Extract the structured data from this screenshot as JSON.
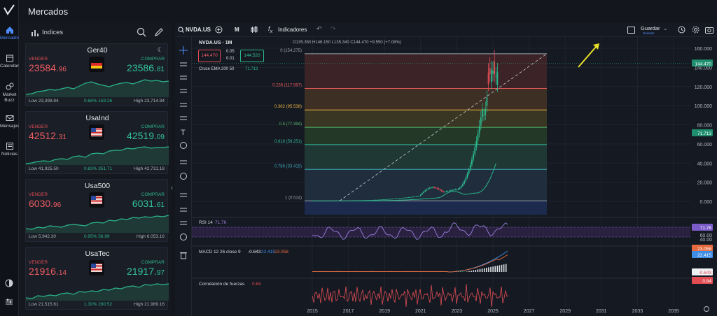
{
  "app": {
    "title": "Mercados"
  },
  "rail": {
    "items": [
      {
        "label": "Mercados",
        "icon": "home-icon"
      },
      {
        "label": "Calendario",
        "icon": "calendar-icon"
      },
      {
        "label": "Market Buzz",
        "icon": "buzz-icon"
      },
      {
        "label": "Mensajes",
        "icon": "mail-icon"
      },
      {
        "label": "Noticias",
        "icon": "news-icon"
      }
    ]
  },
  "markets": {
    "header": "Indices",
    "cards": [
      {
        "name": "Ger40",
        "sell_label": "VENDER",
        "buy_label": "COMPRAR",
        "sell_main": "23584.",
        "sell_small": "96",
        "buy_main": "23586.",
        "buy_small": "81",
        "low": "Low 23,398.84",
        "change": "0.68%  159.26",
        "high": "High 23,714.94",
        "flag": "Germany"
      },
      {
        "name": "UsaInd",
        "sell_label": "VENDER",
        "buy_label": "COMPRAR",
        "sell_main": "42512.",
        "sell_small": "31",
        "buy_main": "42519.",
        "buy_small": "09",
        "low": "Low 41,925.50",
        "change": "0.83%  351.71",
        "high": "High 42,731.18",
        "flag": "USA"
      },
      {
        "name": "Usa500",
        "sell_label": "VENDER",
        "buy_label": "COMPRAR",
        "sell_main": "6030.",
        "sell_small": "96",
        "buy_main": "6031.",
        "buy_small": "61",
        "low": "Low 5,942.30",
        "change": "0.95%  56.99",
        "high": "High 6,053.16",
        "flag": "USA"
      },
      {
        "name": "UsaTec",
        "sell_label": "VENDER",
        "buy_label": "COMPRAR",
        "sell_main": "21916.",
        "sell_small": "14",
        "buy_main": "21917.",
        "buy_small": "97",
        "low": "Low 21,515.61",
        "change": "1.30%  280.52",
        "high": "High 21,989.16",
        "flag": "USA"
      }
    ]
  },
  "toolbar": {
    "symbol": "NVDA.US",
    "interval": "M",
    "indicators": "Indicadores",
    "save": "Guardar",
    "save_sub": "Guardar"
  },
  "legend": {
    "title": "NVDA.US · 1M",
    "ohlc": "O135.350  H146.150  L135.340  C144.470  +9.550 (+7.08%)",
    "sell_box": "144.470",
    "buy_box": "144.520",
    "spread_top": "0.05",
    "spread_bot": "0.01",
    "ema": "Cruce EMA  200 50",
    "ema_val": "71.713"
  },
  "fib": [
    {
      "label": "0 (154.275)",
      "color": "#9ba1ab"
    },
    {
      "label": "0.236 (117.987)",
      "color": "#e0585a"
    },
    {
      "label": "0.382 (95.538)",
      "color": "#e9b43d"
    },
    {
      "label": "0.5 (77.394)",
      "color": "#56b86a"
    },
    {
      "label": "0.618 (59.251)",
      "color": "#33b79d"
    },
    {
      "label": "0.786 (33.419)",
      "color": "#3fa5b8"
    },
    {
      "label": "1 (0.514)",
      "color": "#9ba1ab"
    }
  ],
  "price_axis": [
    "160.000",
    "140.000",
    "120.000",
    "100.000",
    "80.000",
    "60.000",
    "40.000",
    "20.000",
    "0.000"
  ],
  "price_tags": {
    "last": "144.470",
    "ema": "71.713"
  },
  "rsi": {
    "label": "RSI  14",
    "value": "71.76",
    "tag": "71.76",
    "levels": [
      "60.00",
      "40.00"
    ]
  },
  "macd": {
    "label": "MACD  12 26 close 9",
    "v1": "-0.643",
    "v2": "22.415",
    "v3": "23.058",
    "tags": [
      "23.058",
      "22.415",
      "-0.643"
    ]
  },
  "corr": {
    "label": "Correlación de fuerzas",
    "value": "0.84",
    "tag": "0.84"
  },
  "years": [
    "2015",
    "2017",
    "2019",
    "2021",
    "2023",
    "2025",
    "2027",
    "2029",
    "2031",
    "2033",
    "2035"
  ],
  "colors": {
    "up": "#2bb68c",
    "down": "#e04e54",
    "accent": "#2962ff"
  }
}
